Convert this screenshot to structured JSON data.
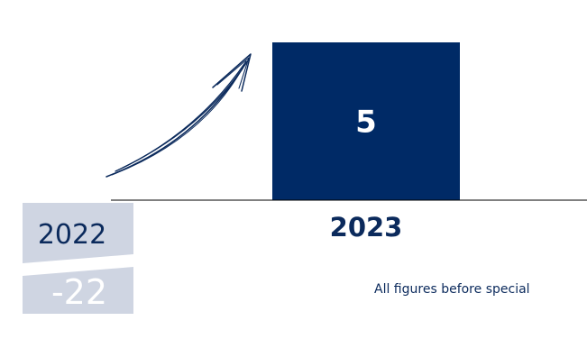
{
  "chart_data": {
    "type": "bar",
    "categories": [
      "2023"
    ],
    "values": [
      5
    ],
    "value_labels": [
      "5"
    ],
    "previous_period": {
      "label": "2022",
      "value_label": "-22"
    },
    "footnote": "All figures before special",
    "colors": {
      "bar": "#002a66",
      "text": "#0b2a5c",
      "previous_panel": "#cfd5e2",
      "arrow": "#0b2a5c",
      "baseline": "#000000"
    },
    "grid": false,
    "legend": "none",
    "decoration": "upward-arrow"
  }
}
